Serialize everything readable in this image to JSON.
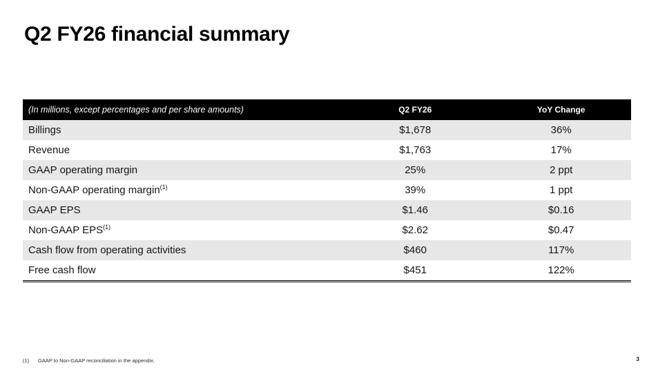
{
  "slide": {
    "title": "Q2 FY26 financial summary",
    "page_number": "3",
    "footnote": {
      "marker": "(1)",
      "text": "GAAP to Non-GAAP reconciliation in the appendix."
    }
  },
  "colors": {
    "table_header_bg": "#000000",
    "row_stripe": "#e7e7e7",
    "background": "#ffffff",
    "text": "#000000"
  },
  "table": {
    "header": {
      "caption": "(In millions, except percentages and per share amounts)",
      "col2": "Q2 FY26",
      "col3": "YoY Change"
    },
    "rows": [
      {
        "label": "Billings",
        "sup": "",
        "q2": "$1,678",
        "yoy": "36%"
      },
      {
        "label": "Revenue",
        "sup": "",
        "q2": "$1,763",
        "yoy": "17%"
      },
      {
        "label": "GAAP operating margin",
        "sup": "",
        "q2": "25%",
        "yoy": "2 ppt"
      },
      {
        "label": "Non-GAAP operating margin",
        "sup": "(1)",
        "q2": "39%",
        "yoy": "1 ppt"
      },
      {
        "label": "GAAP EPS",
        "sup": "",
        "q2": "$1.46",
        "yoy": "$0.16"
      },
      {
        "label": "Non-GAAP EPS",
        "sup": "(1)",
        "q2": "$2.62",
        "yoy": "$0.47"
      },
      {
        "label": "Cash flow from operating activities",
        "sup": "",
        "q2": "$460",
        "yoy": "117%"
      },
      {
        "label": "Free cash flow",
        "sup": "",
        "q2": "$451",
        "yoy": "122%"
      }
    ]
  }
}
